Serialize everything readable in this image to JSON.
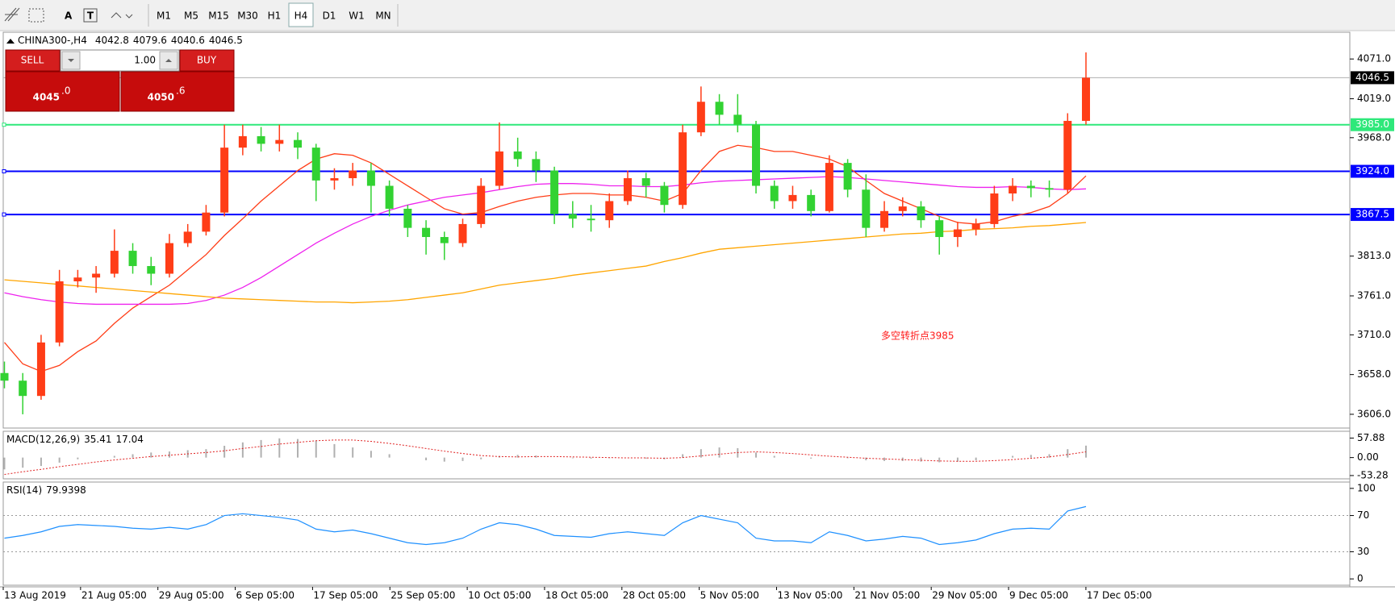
{
  "toolbar": {
    "tools": [
      "A",
      "T"
    ],
    "timeframes": [
      "M1",
      "M5",
      "M15",
      "M30",
      "H1",
      "H4",
      "D1",
      "W1",
      "MN"
    ],
    "active": "H4"
  },
  "trade_panel": {
    "sell": "SELL",
    "buy": "BUY",
    "volume": "1.00",
    "bid_big": "4045",
    "bid_small": ".0",
    "ask_big": "4050",
    "ask_small": ".6"
  },
  "chart_data": {
    "type": "candlestick",
    "title": "CHINA300-,H4",
    "last_bar": [
      4042.8,
      4079.6,
      4040.6,
      4046.5
    ],
    "up_color": "#ff3d17",
    "down_color": "#32d232",
    "open": [
      3660,
      3650,
      3630,
      3700,
      3780,
      3785,
      3790,
      3820,
      3800,
      3790,
      3830,
      3845,
      3870,
      3955,
      3970,
      3960,
      3965,
      3955,
      3912,
      3915,
      3925,
      3905,
      3875,
      3850,
      3838,
      3830,
      3855,
      3905,
      3950,
      3940,
      3925,
      3868,
      3862,
      3860,
      3885,
      3915,
      3905,
      3880,
      3975,
      4015,
      3998,
      3985,
      3905,
      3885,
      3893,
      3872,
      3935,
      3900,
      3850,
      3872,
      3878,
      3860,
      3838,
      3848,
      3855,
      3895,
      3905,
      3902,
      3900,
      3990
    ],
    "high": [
      3675,
      3660,
      3710,
      3795,
      3795,
      3800,
      3848,
      3830,
      3812,
      3842,
      3855,
      3880,
      3985,
      3985,
      3982,
      3985,
      3975,
      3960,
      3928,
      3935,
      3935,
      3912,
      3880,
      3860,
      3845,
      3862,
      3915,
      3988,
      3968,
      3950,
      3930,
      3885,
      3880,
      3895,
      3925,
      3922,
      3910,
      3985,
      4035,
      4025,
      4025,
      3990,
      3912,
      3905,
      3900,
      3945,
      3940,
      3920,
      3885,
      3890,
      3885,
      3865,
      3858,
      3862,
      3905,
      3915,
      3912,
      3912,
      4000,
      4079.6
    ],
    "low": [
      3640,
      3606,
      3625,
      3695,
      3772,
      3765,
      3785,
      3790,
      3775,
      3785,
      3825,
      3840,
      3865,
      3945,
      3950,
      3950,
      3940,
      3885,
      3900,
      3905,
      3870,
      3865,
      3838,
      3815,
      3808,
      3825,
      3850,
      3900,
      3930,
      3910,
      3855,
      3850,
      3845,
      3850,
      3880,
      3890,
      3870,
      3875,
      3970,
      3985,
      3975,
      3895,
      3875,
      3875,
      3865,
      3870,
      3890,
      3838,
      3845,
      3865,
      3850,
      3815,
      3825,
      3840,
      3850,
      3885,
      3890,
      3890,
      3895,
      3985
    ],
    "close": [
      3650,
      3630,
      3700,
      3780,
      3785,
      3790,
      3820,
      3800,
      3790,
      3830,
      3845,
      3870,
      3955,
      3970,
      3960,
      3965,
      3955,
      3912,
      3915,
      3925,
      3905,
      3875,
      3850,
      3838,
      3830,
      3855,
      3905,
      3950,
      3940,
      3925,
      3868,
      3862,
      3860,
      3885,
      3915,
      3905,
      3880,
      3975,
      4015,
      3998,
      3985,
      3905,
      3885,
      3893,
      3872,
      3935,
      3900,
      3850,
      3872,
      3878,
      3860,
      3838,
      3848,
      3855,
      3895,
      3905,
      3902,
      3900,
      3990,
      4046.5
    ],
    "moving_averages": [
      {
        "color": "#ff3d17",
        "values": [
          3700,
          3672,
          3662,
          3670,
          3688,
          3702,
          3725,
          3745,
          3760,
          3775,
          3795,
          3815,
          3840,
          3862,
          3885,
          3905,
          3925,
          3940,
          3947,
          3945,
          3935,
          3920,
          3905,
          3890,
          3875,
          3868,
          3870,
          3878,
          3885,
          3890,
          3893,
          3895,
          3895,
          3893,
          3893,
          3890,
          3885,
          3895,
          3925,
          3950,
          3958,
          3955,
          3950,
          3950,
          3945,
          3940,
          3930,
          3912,
          3895,
          3885,
          3875,
          3865,
          3857,
          3855,
          3858,
          3865,
          3870,
          3878,
          3895,
          3918
        ]
      },
      {
        "color": "#ee22ee",
        "values": [
          3765,
          3760,
          3756,
          3753,
          3751,
          3750,
          3750,
          3750,
          3750,
          3750,
          3751,
          3755,
          3762,
          3772,
          3785,
          3800,
          3815,
          3830,
          3843,
          3855,
          3865,
          3873,
          3880,
          3885,
          3890,
          3893,
          3896,
          3900,
          3904,
          3907,
          3908,
          3908,
          3907,
          3905,
          3905,
          3904,
          3904,
          3906,
          3909,
          3911,
          3912,
          3913,
          3914,
          3915,
          3916,
          3917,
          3916,
          3914,
          3912,
          3910,
          3908,
          3906,
          3904,
          3903,
          3903,
          3904,
          3903,
          3901,
          3900,
          3901
        ]
      },
      {
        "color": "#ffa500",
        "values": [
          3782,
          3780,
          3778,
          3776,
          3774,
          3772,
          3770,
          3768,
          3766,
          3764,
          3762,
          3760,
          3758,
          3757,
          3756,
          3755,
          3754,
          3753,
          3753,
          3752,
          3753,
          3754,
          3756,
          3759,
          3762,
          3765,
          3770,
          3775,
          3778,
          3781,
          3784,
          3788,
          3791,
          3794,
          3797,
          3800,
          3806,
          3811,
          3817,
          3822,
          3824,
          3826,
          3828,
          3830,
          3832,
          3834,
          3836,
          3838,
          3840,
          3842,
          3843,
          3845,
          3846,
          3848,
          3849,
          3850,
          3852,
          3853,
          3855,
          3857
        ]
      }
    ],
    "ylim": [
      3588,
      4106
    ],
    "yticks": [
      {
        "value": 4071,
        "label": "4071.0"
      },
      {
        "value": 4019,
        "label": "4019.0"
      },
      {
        "value": 3968,
        "label": "3968.0"
      },
      {
        "value": 3813,
        "label": "3813.0"
      },
      {
        "value": 3761,
        "label": "3761.0"
      },
      {
        "value": 3710,
        "label": "3710.0"
      },
      {
        "value": 3658,
        "label": "3658.0"
      },
      {
        "value": 3606,
        "label": "3606.0"
      }
    ],
    "current_price": 4046.5,
    "levels": [
      {
        "value": 3985,
        "label": "3985.0",
        "color": "#2ee87a"
      },
      {
        "value": 3924,
        "label": "3924.0",
        "color": "#0000ff"
      },
      {
        "value": 3867.5,
        "label": "3867.5",
        "color": "#0000ff"
      }
    ],
    "annotation": {
      "text": "多空转折点3985",
      "color": "#ff1a1a"
    },
    "x_labels": [
      "13 Aug 2019",
      "21 Aug 05:00",
      "29 Aug 05:00",
      "6 Sep 05:00",
      "17 Sep 05:00",
      "25 Sep 05:00",
      "10 Oct 05:00",
      "18 Oct 05:00",
      "28 Oct 05:00",
      "5 Nov 05:00",
      "13 Nov 05:00",
      "21 Nov 05:00",
      "29 Nov 05:00",
      "9 Dec 05:00",
      "17 Dec 05:00"
    ],
    "macd": {
      "label": "MACD(12,26,9)",
      "hist_color": "#b0b0b0",
      "signal_color": "#e02020",
      "histogram": [
        -35,
        -30,
        -25,
        -15,
        -5,
        0,
        5,
        10,
        15,
        18,
        22,
        25,
        35,
        45,
        52,
        57,
        55,
        50,
        40,
        30,
        20,
        10,
        0,
        -8,
        -12,
        -10,
        -5,
        5,
        8,
        6,
        0,
        -2,
        -3,
        -2,
        0,
        -3,
        -5,
        10,
        25,
        30,
        28,
        15,
        5,
        0,
        -3,
        0,
        -2,
        -8,
        -10,
        -10,
        -12,
        -14,
        -12,
        -8,
        0,
        5,
        8,
        10,
        25,
        35.41
      ],
      "signal": [
        -50,
        -42,
        -35,
        -27,
        -20,
        -13,
        -7,
        -2,
        3,
        7,
        11,
        15,
        20,
        27,
        33,
        40,
        45,
        50,
        52,
        52,
        48,
        42,
        35,
        27,
        19,
        12,
        6,
        3,
        2,
        3,
        3,
        2,
        1,
        0,
        -1,
        -1,
        -2,
        0,
        5,
        10,
        15,
        17,
        15,
        12,
        8,
        4,
        1,
        -2,
        -4,
        -6,
        -8,
        -10,
        -11,
        -11,
        -9,
        -6,
        -2,
        2,
        9,
        17.04
      ],
      "ylim": [
        -63,
        78
      ],
      "yticks": [
        57.88,
        {
          "value": 0,
          "label": "0.00"
        },
        -53.28
      ]
    },
    "rsi": {
      "label": "RSI(14)",
      "color": "#1e90ff",
      "values": [
        45,
        48,
        52,
        58,
        60,
        59,
        58,
        56,
        55,
        57,
        55,
        60,
        70,
        72,
        70,
        68,
        65,
        55,
        52,
        54,
        50,
        45,
        40,
        38,
        40,
        45,
        55,
        62,
        60,
        55,
        48,
        47,
        46,
        50,
        52,
        50,
        48,
        62,
        70,
        66,
        62,
        45,
        42,
        42,
        40,
        52,
        48,
        42,
        44,
        47,
        45,
        38,
        40,
        43,
        50,
        55,
        56,
        55,
        75,
        79.9398
      ],
      "ylim": [
        -7,
        107
      ],
      "yticks": [
        100,
        70,
        30,
        0
      ]
    }
  }
}
